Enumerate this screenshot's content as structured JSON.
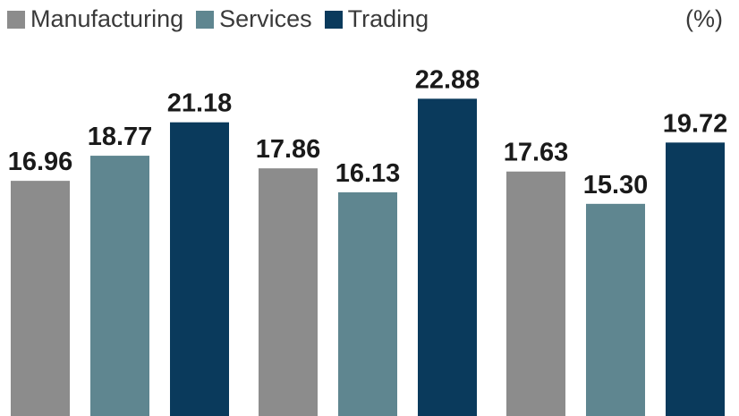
{
  "chart_data": {
    "type": "bar",
    "title": "",
    "unit_label": "(%)",
    "categories": [
      "",
      "",
      ""
    ],
    "series": [
      {
        "name": "Manufacturing",
        "color": "#8c8c8c",
        "values": [
          16.96,
          17.86,
          17.63
        ]
      },
      {
        "name": "Services",
        "color": "#5f8690",
        "values": [
          18.77,
          16.13,
          15.3
        ]
      },
      {
        "name": "Trading",
        "color": "#0a3a5c",
        "values": [
          21.18,
          22.88,
          19.72
        ]
      }
    ],
    "value_labels": [
      [
        "16.96",
        "17.86",
        "17.63"
      ],
      [
        "18.77",
        "16.13",
        "15.30"
      ],
      [
        "21.18",
        "22.88",
        "19.72"
      ]
    ],
    "ylim": [
      0,
      25
    ],
    "grid": false,
    "legend": "top-left"
  }
}
